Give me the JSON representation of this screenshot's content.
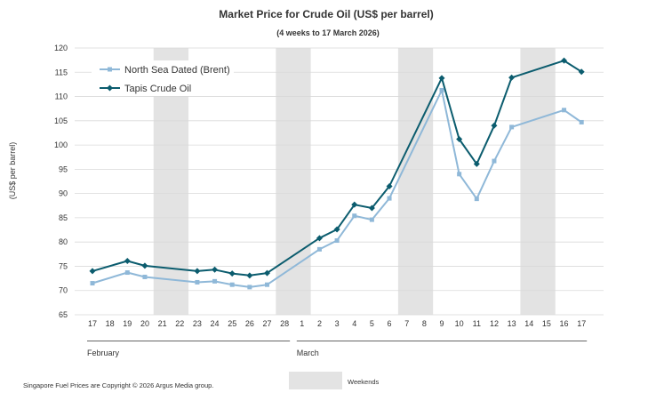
{
  "chart_data": {
    "type": "line",
    "title": "Market Price for Crude Oil (US$ per barrel)",
    "subtitle": "(4 weeks to 17 March 2026)",
    "ylabel": "(US$ per barrel)",
    "ylim": [
      65,
      120
    ],
    "yticks": [
      65,
      70,
      75,
      80,
      85,
      90,
      95,
      100,
      105,
      110,
      115,
      120
    ],
    "grid": true,
    "categories": [
      "17",
      "18",
      "19",
      "20",
      "21",
      "22",
      "23",
      "24",
      "25",
      "26",
      "27",
      "28",
      "1",
      "2",
      "3",
      "4",
      "5",
      "6",
      "7",
      "8",
      "9",
      "10",
      "11",
      "12",
      "13",
      "14",
      "15",
      "16",
      "17"
    ],
    "months": [
      {
        "label": "February",
        "start": 0,
        "end": 11
      },
      {
        "label": "March",
        "start": 12,
        "end": 28
      }
    ],
    "weekend_ranges": [
      [
        4,
        5
      ],
      [
        11,
        12
      ],
      [
        18,
        19
      ],
      [
        25,
        26
      ]
    ],
    "series": [
      {
        "name": "North Sea Dated (Brent)",
        "color": "#8fb8d8",
        "marker": "square",
        "values": [
          71.5,
          null,
          73.7,
          72.8,
          null,
          null,
          71.7,
          71.9,
          71.2,
          70.7,
          71.2,
          null,
          null,
          78.5,
          80.3,
          85.4,
          84.6,
          89.0,
          null,
          null,
          111.3,
          94.0,
          88.9,
          96.7,
          103.7,
          null,
          null,
          107.2,
          104.7
        ]
      },
      {
        "name": "Tapis Crude Oil",
        "color": "#0b5c6e",
        "marker": "diamond",
        "values": [
          74.0,
          null,
          76.1,
          75.1,
          null,
          null,
          74.0,
          74.3,
          73.5,
          73.1,
          73.6,
          null,
          null,
          80.8,
          82.6,
          87.7,
          87.0,
          91.5,
          null,
          null,
          113.8,
          101.2,
          96.1,
          104.0,
          113.9,
          null,
          null,
          117.4,
          115.1
        ]
      }
    ],
    "legend_position": "top-left",
    "weekend_legend_label": "Weekends",
    "weekend_color": "#e3e3e3",
    "footer": "Singapore Fuel Prices are Copyright © 2026 Argus Media group."
  }
}
